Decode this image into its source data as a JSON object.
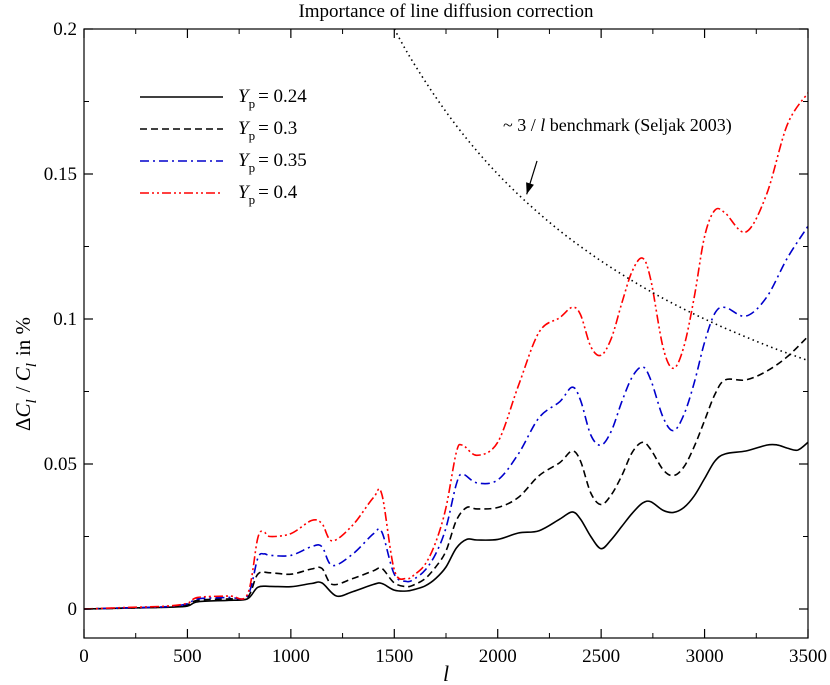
{
  "chart_data": {
    "type": "line",
    "title": "Importance of line diffusion correction",
    "xlabel": "l",
    "ylabel": "ΔC_l / C_l in %",
    "xlim": [
      0,
      3500
    ],
    "ylim": [
      -0.01,
      0.2
    ],
    "xticks": [
      0,
      500,
      1000,
      1500,
      2000,
      2500,
      3000,
      3500
    ],
    "yticks": [
      0,
      0.05,
      0.1,
      0.15,
      0.2
    ],
    "xtick_labels": [
      "0",
      "500",
      "1000",
      "1500",
      "2000",
      "2500",
      "3000",
      "3500"
    ],
    "ytick_labels": [
      "0",
      "0.05",
      "0.1",
      "0.15",
      "0.2"
    ],
    "grid": false,
    "legend_position": "top-left",
    "series": [
      {
        "name": "Y_p = 0.24",
        "legend": {
          "sym": "Y",
          "sub": "p",
          "value": "= 0.24"
        },
        "color": "#000000",
        "dash": "solid",
        "x": [
          0,
          200,
          400,
          500,
          550,
          700,
          790,
          840,
          900,
          1000,
          1100,
          1150,
          1220,
          1300,
          1400,
          1440,
          1500,
          1560,
          1600,
          1650,
          1700,
          1750,
          1800,
          1850,
          1900,
          2000,
          2100,
          2200,
          2300,
          2360,
          2400,
          2450,
          2500,
          2550,
          2600,
          2650,
          2700,
          2740,
          2800,
          2850,
          2900,
          2950,
          3000,
          3050,
          3100,
          3200,
          3300,
          3350,
          3400,
          3450,
          3500
        ],
        "y": [
          0,
          0.0003,
          0.0006,
          0.001,
          0.0025,
          0.003,
          0.0035,
          0.0075,
          0.0078,
          0.0077,
          0.0088,
          0.009,
          0.0045,
          0.006,
          0.0085,
          0.0088,
          0.0065,
          0.0062,
          0.0068,
          0.008,
          0.0105,
          0.0145,
          0.021,
          0.024,
          0.0238,
          0.024,
          0.0262,
          0.027,
          0.031,
          0.0335,
          0.031,
          0.025,
          0.0208,
          0.024,
          0.0285,
          0.033,
          0.0365,
          0.037,
          0.034,
          0.0333,
          0.035,
          0.039,
          0.045,
          0.051,
          0.0535,
          0.0545,
          0.0565,
          0.0566,
          0.0555,
          0.0548,
          0.0575
        ]
      },
      {
        "name": "Y_p = 0.3",
        "legend": {
          "sym": "Y",
          "sub": "p",
          "value": "= 0.3"
        },
        "color": "#000000",
        "dash": "dashed",
        "x": [
          0,
          200,
          400,
          500,
          550,
          700,
          790,
          840,
          900,
          1000,
          1100,
          1150,
          1200,
          1300,
          1400,
          1440,
          1500,
          1560,
          1600,
          1650,
          1700,
          1750,
          1800,
          1850,
          1900,
          2000,
          2100,
          2200,
          2300,
          2360,
          2400,
          2450,
          2500,
          2550,
          2600,
          2650,
          2700,
          2740,
          2800,
          2850,
          2900,
          2950,
          3000,
          3050,
          3100,
          3200,
          3300,
          3400,
          3500
        ],
        "y": [
          0,
          0.0003,
          0.0007,
          0.0015,
          0.003,
          0.0035,
          0.004,
          0.012,
          0.0125,
          0.012,
          0.0138,
          0.014,
          0.0085,
          0.0105,
          0.0132,
          0.014,
          0.009,
          0.0077,
          0.0085,
          0.0105,
          0.0145,
          0.02,
          0.0305,
          0.035,
          0.0345,
          0.035,
          0.0385,
          0.046,
          0.0505,
          0.0545,
          0.051,
          0.04,
          0.036,
          0.0395,
          0.046,
          0.054,
          0.0575,
          0.055,
          0.048,
          0.046,
          0.049,
          0.056,
          0.065,
          0.074,
          0.079,
          0.079,
          0.082,
          0.087,
          0.094
        ]
      },
      {
        "name": "Y_p = 0.35",
        "legend": {
          "sym": "Y",
          "sub": "p",
          "value": "= 0.35"
        },
        "color": "#0000cc",
        "dash": "dash-dot",
        "x": [
          0,
          200,
          400,
          500,
          550,
          700,
          790,
          840,
          870,
          900,
          1000,
          1100,
          1150,
          1200,
          1300,
          1400,
          1440,
          1500,
          1560,
          1600,
          1650,
          1700,
          1750,
          1800,
          1830,
          1900,
          2000,
          2100,
          2200,
          2300,
          2360,
          2400,
          2450,
          2500,
          2550,
          2600,
          2650,
          2700,
          2740,
          2800,
          2850,
          2900,
          2950,
          3000,
          3050,
          3100,
          3200,
          3300,
          3400,
          3500
        ],
        "y": [
          0,
          0.0004,
          0.0008,
          0.0018,
          0.0035,
          0.004,
          0.0045,
          0.0175,
          0.019,
          0.0185,
          0.0185,
          0.0215,
          0.0215,
          0.015,
          0.019,
          0.026,
          0.0265,
          0.012,
          0.0095,
          0.0105,
          0.0135,
          0.019,
          0.028,
          0.043,
          0.0465,
          0.0435,
          0.0445,
          0.0535,
          0.066,
          0.0715,
          0.0765,
          0.072,
          0.06,
          0.0565,
          0.0615,
          0.0715,
          0.08,
          0.0835,
          0.079,
          0.066,
          0.0615,
          0.067,
          0.078,
          0.092,
          0.102,
          0.104,
          0.101,
          0.1075,
          0.121,
          0.132
        ]
      },
      {
        "name": "Y_p = 0.4",
        "legend": {
          "sym": "Y",
          "sub": "p",
          "value": "= 0.4"
        },
        "color": "#ff0000",
        "dash": "dash-dot-dot",
        "x": [
          0,
          200,
          400,
          500,
          550,
          700,
          790,
          840,
          870,
          900,
          1000,
          1100,
          1150,
          1200,
          1300,
          1400,
          1440,
          1500,
          1560,
          1600,
          1650,
          1700,
          1750,
          1800,
          1830,
          1900,
          2000,
          2100,
          2200,
          2300,
          2360,
          2400,
          2450,
          2500,
          2550,
          2600,
          2650,
          2700,
          2740,
          2800,
          2850,
          2900,
          2950,
          3000,
          3050,
          3100,
          3200,
          3300,
          3400,
          3500
        ],
        "y": [
          0,
          0.0005,
          0.001,
          0.002,
          0.004,
          0.0045,
          0.005,
          0.0245,
          0.0265,
          0.025,
          0.026,
          0.0305,
          0.0295,
          0.0235,
          0.029,
          0.0385,
          0.0395,
          0.0135,
          0.0105,
          0.012,
          0.0155,
          0.023,
          0.035,
          0.054,
          0.0565,
          0.053,
          0.0575,
          0.077,
          0.0955,
          0.1005,
          0.104,
          0.1015,
          0.0905,
          0.0875,
          0.0935,
          0.1055,
          0.1165,
          0.121,
          0.1135,
          0.09,
          0.083,
          0.0905,
          0.1075,
          0.1285,
          0.1375,
          0.1365,
          0.13,
          0.143,
          0.167,
          0.178
        ]
      },
      {
        "name": "~ 3 / l benchmark (Seljak 2003)",
        "color": "#000000",
        "dash": "dotted",
        "x": [
          1500,
          1550,
          1600,
          1700,
          1800,
          1900,
          2000,
          2100,
          2200,
          2300,
          2400,
          2500,
          2600,
          2700,
          2800,
          2900,
          3000,
          3100,
          3200,
          3300,
          3400,
          3500
        ],
        "y": [
          0.2,
          0.1935,
          0.1875,
          0.1765,
          0.1667,
          0.1579,
          0.15,
          0.1429,
          0.1364,
          0.1304,
          0.125,
          0.12,
          0.1154,
          0.1111,
          0.1071,
          0.1034,
          0.1,
          0.0968,
          0.0938,
          0.0909,
          0.0882,
          0.0857
        ]
      }
    ],
    "annotation": {
      "text_prefix": "~ 3 / ",
      "text_var": "l",
      "text_suffix": "  benchmark (Seljak 2003)",
      "arrow_from": [
        2190,
        0.1545
      ],
      "arrow_to": [
        2140,
        0.143
      ]
    }
  }
}
